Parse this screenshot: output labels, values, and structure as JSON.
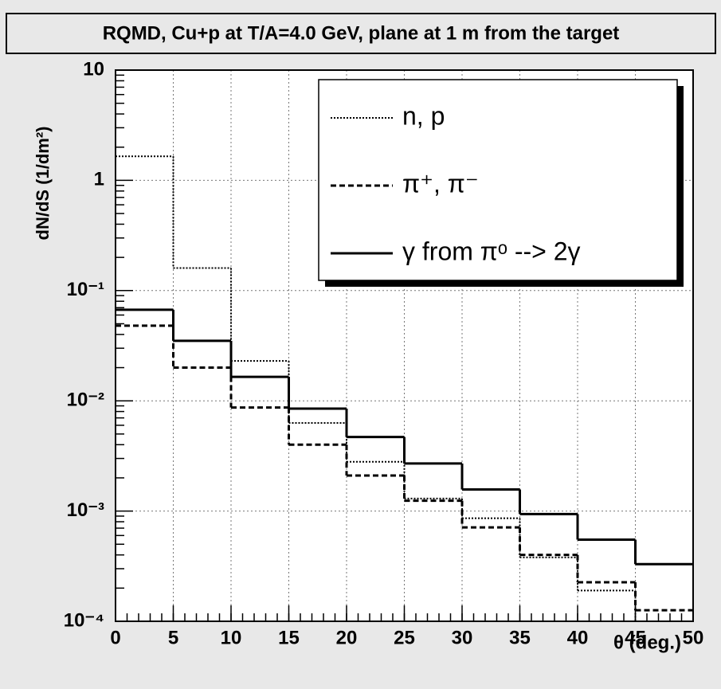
{
  "chart_data": {
    "type": "histogram",
    "title": "RQMD, Cu+p at T/A=4.0 GeV, plane at 1 m from the target",
    "xlabel": "θ (deg.)",
    "ylabel": "dN/dS (1/dm²)",
    "log_y": true,
    "grid": true,
    "legend": "upper right",
    "bins": [
      0,
      5,
      10,
      15,
      20,
      25,
      30,
      35,
      40,
      45,
      50
    ],
    "series": [
      {
        "name": "n, p",
        "color": "#000000",
        "values": [
          1.65,
          0.16,
          0.023,
          0.0063,
          0.0028,
          0.0013,
          0.00086,
          0.00038,
          0.00019,
          0.0001
        ]
      },
      {
        "name": "π⁺, π⁻",
        "color": "#000000",
        "values": [
          0.048,
          0.02,
          0.0087,
          0.004,
          0.0021,
          0.00124,
          0.00071,
          0.0004,
          0.000226,
          0.000126
        ]
      },
      {
        "name": "γ from  πᵒ --> 2γ",
        "color": "#000000",
        "values": [
          0.067,
          0.035,
          0.0165,
          0.0085,
          0.0047,
          0.0027,
          0.00157,
          0.00094,
          0.00055,
          0.00033
        ]
      }
    ],
    "xlim": [
      0,
      50
    ],
    "xticks": [
      0,
      5,
      10,
      15,
      20,
      25,
      30,
      35,
      40,
      45,
      50
    ],
    "ylim": [
      0.0001,
      10
    ],
    "yticks": [
      {
        "value": 0.0001,
        "label": "10⁻⁴"
      },
      {
        "value": 0.001,
        "label": "10⁻³"
      },
      {
        "value": 0.01,
        "label": "10⁻²"
      },
      {
        "value": 0.1,
        "label": "10⁻¹"
      },
      1,
      10
    ]
  }
}
